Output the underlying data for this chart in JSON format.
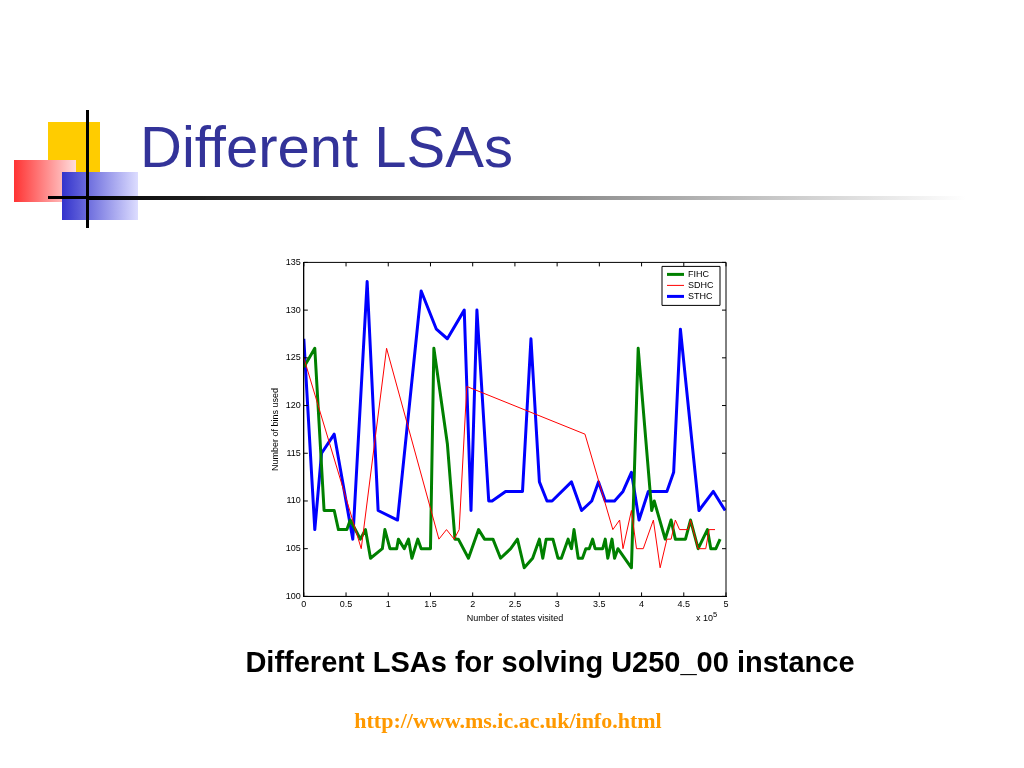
{
  "chart_data": {
    "type": "line",
    "title": "Different LSAs",
    "xlabel": "Number of states visited",
    "ylabel": "Number of bins used",
    "annotations": [
      "x 10$^{5}$",
      "Different LSAs for solving U250_00 instance",
      "http://www.ms.ic.ac.uk/info.html"
    ],
    "xlim": [
      0,
      5
    ],
    "xticks": [
      0,
      0.5,
      1,
      1.5,
      2,
      2.5,
      3,
      3.5,
      4,
      4.5,
      5
    ],
    "ylim": [
      100,
      135
    ],
    "yticks": [
      100,
      105,
      110,
      115,
      120,
      125,
      130,
      135
    ],
    "grid": false,
    "legend": "top right",
    "marker": "none",
    "line_style": "solid",
    "series": [
      {
        "name": "FIHC",
        "color": "#008000",
        "x": [
          0,
          0.13,
          0.24,
          0.36,
          0.41,
          0.51,
          0.55,
          0.67,
          0.73,
          0.79,
          0.93,
          0.96,
          1.02,
          1.1,
          1.12,
          1.19,
          1.24,
          1.28,
          1.35,
          1.39,
          1.5,
          1.54,
          1.7,
          1.79,
          1.83,
          1.95,
          2.07,
          2.14,
          2.24,
          2.33,
          2.45,
          2.53,
          2.61,
          2.71,
          2.79,
          2.83,
          2.87,
          2.95,
          3.01,
          3.05,
          3.13,
          3.17,
          3.2,
          3.25,
          3.3,
          3.34,
          3.38,
          3.42,
          3.45,
          3.54,
          3.57,
          3.6,
          3.65,
          3.68,
          3.72,
          3.88,
          3.96,
          4.12,
          4.15,
          4.28,
          4.35,
          4.4,
          4.52,
          4.58,
          4.67,
          4.78,
          4.82,
          4.88,
          4.93
        ],
        "values": [
          124,
          126,
          109,
          109,
          107,
          107,
          108,
          106,
          107,
          104,
          105,
          107,
          105,
          105,
          106,
          105,
          106,
          104,
          106,
          105,
          105,
          126,
          116,
          106,
          106,
          104,
          107,
          106,
          106,
          104,
          105,
          106,
          103,
          104,
          106,
          104,
          106,
          106,
          104,
          104,
          106,
          105,
          107,
          104,
          104,
          105,
          105,
          106,
          105,
          105,
          106,
          104,
          106,
          104,
          105,
          103,
          126,
          109,
          110,
          106,
          108,
          106,
          106,
          108,
          105,
          107,
          105,
          105,
          106
        ]
      },
      {
        "name": "SDHC",
        "color": "#ff0000",
        "x": [
          0,
          0.68,
          0.98,
          1.6,
          1.69,
          1.78,
          1.84,
          1.93,
          3.33,
          3.66,
          3.74,
          3.78,
          3.88,
          3.94,
          4.02,
          4.14,
          4.22,
          4.3,
          4.35,
          4.4,
          4.45,
          4.55,
          4.58,
          4.67,
          4.76,
          4.8,
          4.87
        ],
        "values": [
          125,
          105,
          126,
          106,
          107,
          106,
          107,
          122,
          117,
          107,
          108,
          105,
          109,
          105,
          105,
          108,
          103,
          106,
          106,
          108,
          107,
          107,
          108,
          105,
          105,
          107,
          107
        ]
      },
      {
        "name": "STHC",
        "color": "#0000ff",
        "x": [
          0,
          0.13,
          0.21,
          0.36,
          0.58,
          0.75,
          0.88,
          1.11,
          1.39,
          1.57,
          1.7,
          1.9,
          1.98,
          2.05,
          2.19,
          2.23,
          2.39,
          2.59,
          2.69,
          2.79,
          2.88,
          2.94,
          3.17,
          3.29,
          3.41,
          3.49,
          3.57,
          3.68,
          3.78,
          3.88,
          3.97,
          4.08,
          4.3,
          4.38,
          4.46,
          4.68,
          4.85,
          4.99
        ],
        "values": [
          127,
          107,
          115,
          117,
          106,
          133,
          109,
          108,
          132,
          128,
          127,
          130,
          109,
          130,
          110,
          110,
          111,
          111,
          127,
          112,
          110,
          110,
          112,
          109,
          110,
          112,
          110,
          110,
          111,
          113,
          108,
          111,
          111,
          113,
          128,
          109,
          111,
          109
        ]
      }
    ]
  }
}
